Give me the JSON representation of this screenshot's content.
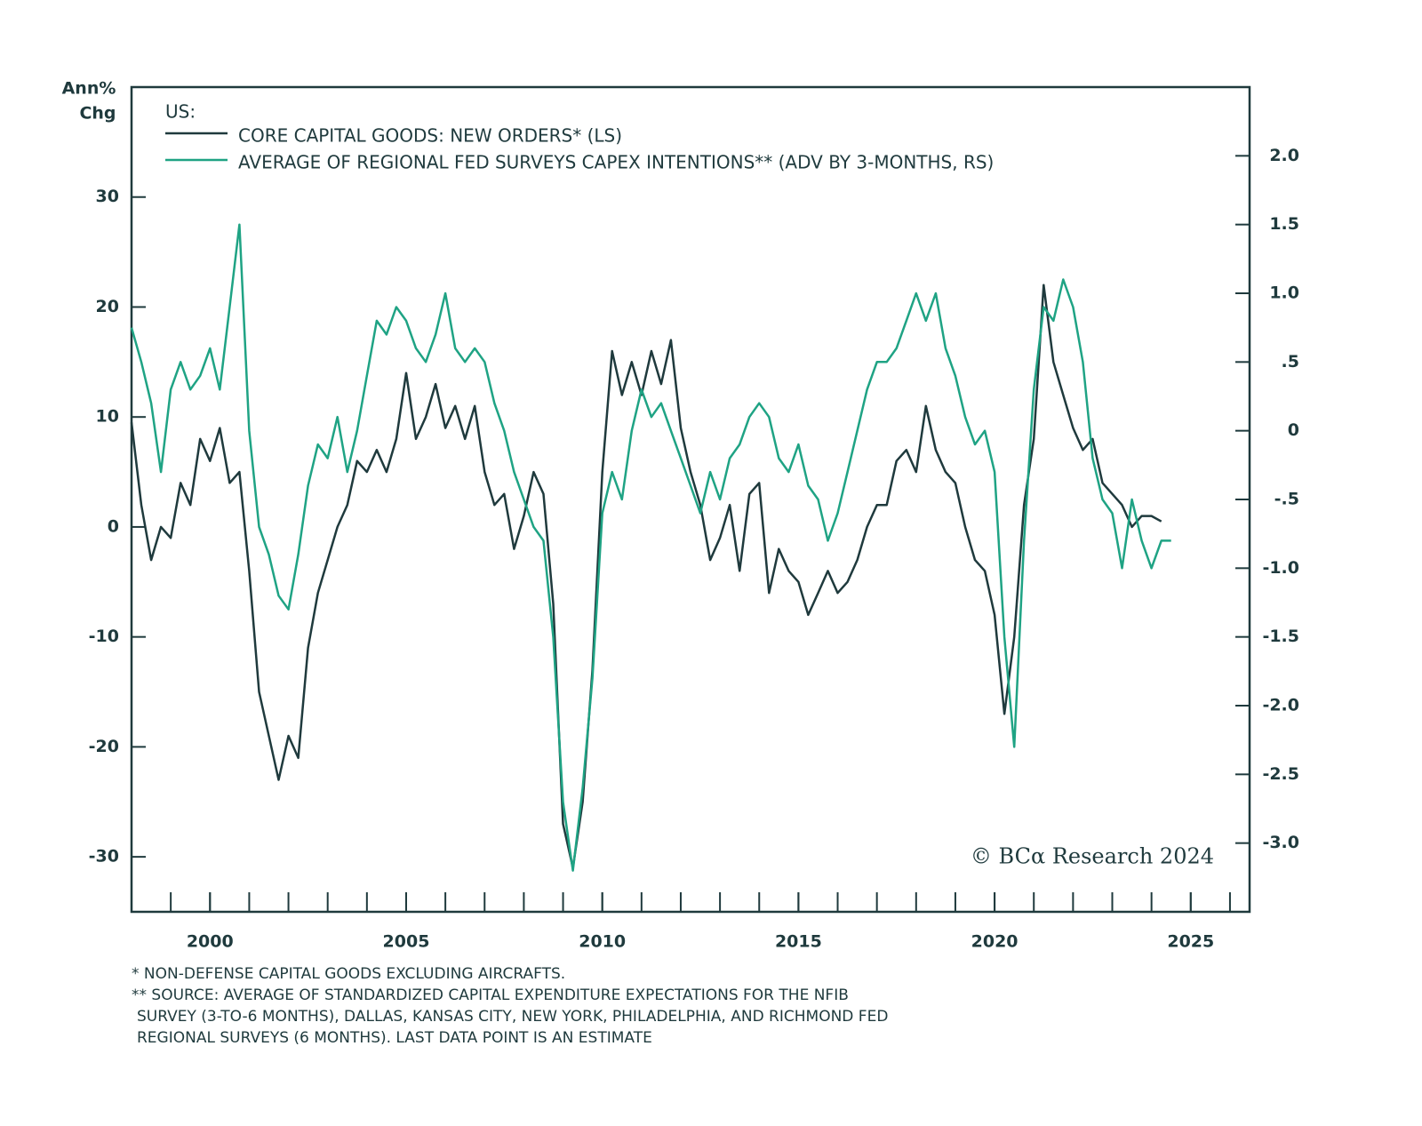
{
  "chart_data": {
    "type": "line",
    "ylabel": [
      "Ann%",
      "Chg"
    ],
    "legend_title": "US:",
    "watermark": "© BCα Research 2024",
    "footnotes": [
      "*   NON-DEFENSE CAPITAL GOODS EXCLUDING AIRCRAFTS.",
      "**  SOURCE: AVERAGE OF STANDARDIZED CAPITAL EXPENDITURE EXPECTATIONS FOR THE NFIB",
      "SURVEY (3-TO-6 MONTHS), DALLAS, KANSAS CITY, NEW YORK, PHILADELPHIA, AND RICHMOND FED",
      "REGIONAL SURVEYS (6 MONTHS). LAST DATA POINT IS AN ESTIMATE"
    ],
    "xlim": [
      1998,
      2026.5
    ],
    "xticks": [
      2000,
      2005,
      2010,
      2015,
      2020,
      2025
    ],
    "xminor_step": 1,
    "ylim": [
      -35,
      40
    ],
    "yticks": [
      -30,
      -20,
      -10,
      0,
      10,
      20,
      30
    ],
    "y2lim": [
      -3.5,
      2.5
    ],
    "y2ticks": [
      {
        "value": -3,
        "label": "-3.0"
      },
      -2.5,
      {
        "value": -2,
        "label": "-2.0"
      },
      -1.5,
      {
        "value": -1,
        "label": "-1.0"
      },
      {
        "value": -0.5,
        "label": "-.5"
      },
      0,
      {
        "value": 0.5,
        "label": ".5"
      },
      {
        "value": 1,
        "label": "1.0"
      },
      1.5,
      {
        "value": 2,
        "label": "2.0"
      }
    ],
    "series": [
      {
        "name": "CORE CAPITAL GOODS: NEW ORDERS* (LS)",
        "color": "#1f3a3d",
        "axis": "y",
        "x": [
          1998,
          1998.25,
          1998.5,
          1998.75,
          1999,
          1999.25,
          1999.5,
          1999.75,
          2000,
          2000.25,
          2000.5,
          2000.75,
          2001,
          2001.25,
          2001.5,
          2001.75,
          2002,
          2002.25,
          2002.5,
          2002.75,
          2003,
          2003.25,
          2003.5,
          2003.75,
          2004,
          2004.25,
          2004.5,
          2004.75,
          2005,
          2005.25,
          2005.5,
          2005.75,
          2006,
          2006.25,
          2006.5,
          2006.75,
          2007,
          2007.25,
          2007.5,
          2007.75,
          2008,
          2008.25,
          2008.5,
          2008.75,
          2009,
          2009.25,
          2009.5,
          2009.75,
          2010,
          2010.25,
          2010.5,
          2010.75,
          2011,
          2011.25,
          2011.5,
          2011.75,
          2012,
          2012.25,
          2012.5,
          2012.75,
          2013,
          2013.25,
          2013.5,
          2013.75,
          2014,
          2014.25,
          2014.5,
          2014.75,
          2015,
          2015.25,
          2015.5,
          2015.75,
          2016,
          2016.25,
          2016.5,
          2016.75,
          2017,
          2017.25,
          2017.5,
          2017.75,
          2018,
          2018.25,
          2018.5,
          2018.75,
          2019,
          2019.25,
          2019.5,
          2019.75,
          2020,
          2020.25,
          2020.5,
          2020.75,
          2021,
          2021.25,
          2021.5,
          2021.75,
          2022,
          2022.25,
          2022.5,
          2022.75,
          2023,
          2023.25,
          2023.5,
          2023.75,
          2024,
          2024.25
        ],
        "values": [
          9.5,
          2,
          -3,
          0,
          -1,
          4,
          2,
          8,
          6,
          9,
          4,
          5,
          -4,
          -15,
          -19,
          -23,
          -19,
          -21,
          -11,
          -6,
          -3,
          0,
          2,
          6,
          5,
          7,
          5,
          8,
          14,
          8,
          10,
          13,
          9,
          11,
          8,
          11,
          5,
          2,
          3,
          -2,
          1,
          5,
          3,
          -7,
          -27,
          -31,
          -25,
          -13,
          5,
          16,
          12,
          15,
          12,
          16,
          13,
          17,
          9,
          5,
          2,
          -3,
          -1,
          2,
          -4,
          3,
          4,
          -6,
          -2,
          -4,
          -5,
          -8,
          -6,
          -4,
          -6,
          -5,
          -3,
          0,
          2,
          2,
          6,
          7,
          5,
          11,
          7,
          5,
          4,
          0,
          -3,
          -4,
          -8,
          -17,
          -10,
          2,
          8,
          22,
          15,
          12,
          9,
          7,
          8,
          4,
          3,
          2,
          0,
          1,
          1,
          0.5
        ]
      },
      {
        "name": "AVERAGE OF REGIONAL FED SURVEYS CAPEX INTENTIONS** (ADV BY 3-MONTHS, RS)",
        "color": "#1fa384",
        "axis": "y2",
        "x": [
          1998,
          1998.25,
          1998.5,
          1998.75,
          1999,
          1999.25,
          1999.5,
          1999.75,
          2000,
          2000.25,
          2000.5,
          2000.75,
          2001,
          2001.25,
          2001.5,
          2001.75,
          2002,
          2002.25,
          2002.5,
          2002.75,
          2003,
          2003.25,
          2003.5,
          2003.75,
          2004,
          2004.25,
          2004.5,
          2004.75,
          2005,
          2005.25,
          2005.5,
          2005.75,
          2006,
          2006.25,
          2006.5,
          2006.75,
          2007,
          2007.25,
          2007.5,
          2007.75,
          2008,
          2008.25,
          2008.5,
          2008.75,
          2009,
          2009.25,
          2009.5,
          2009.75,
          2010,
          2010.25,
          2010.5,
          2010.75,
          2011,
          2011.25,
          2011.5,
          2011.75,
          2012,
          2012.25,
          2012.5,
          2012.75,
          2013,
          2013.25,
          2013.5,
          2013.75,
          2014,
          2014.25,
          2014.5,
          2014.75,
          2015,
          2015.25,
          2015.5,
          2015.75,
          2016,
          2016.25,
          2016.5,
          2016.75,
          2017,
          2017.25,
          2017.5,
          2017.75,
          2018,
          2018.25,
          2018.5,
          2018.75,
          2019,
          2019.25,
          2019.5,
          2019.75,
          2020,
          2020.25,
          2020.5,
          2020.75,
          2021,
          2021.25,
          2021.5,
          2021.75,
          2022,
          2022.25,
          2022.5,
          2022.75,
          2023,
          2023.25,
          2023.5,
          2023.75,
          2024,
          2024.25,
          2024.5
        ],
        "values": [
          0.75,
          0.5,
          0.2,
          -0.3,
          0.3,
          0.5,
          0.3,
          0.4,
          0.6,
          0.3,
          0.9,
          1.5,
          0,
          -0.7,
          -0.9,
          -1.2,
          -1.3,
          -0.9,
          -0.4,
          -0.1,
          -0.2,
          0.1,
          -0.3,
          0,
          0.4,
          0.8,
          0.7,
          0.9,
          0.8,
          0.6,
          0.5,
          0.7,
          1.0,
          0.6,
          0.5,
          0.6,
          0.5,
          0.2,
          0,
          -0.3,
          -0.5,
          -0.7,
          -0.8,
          -1.5,
          -2.7,
          -3.2,
          -2.6,
          -1.8,
          -0.6,
          -0.3,
          -0.5,
          0,
          0.3,
          0.1,
          0.2,
          0,
          -0.2,
          -0.4,
          -0.6,
          -0.3,
          -0.5,
          -0.2,
          -0.1,
          0.1,
          0.2,
          0.1,
          -0.2,
          -0.3,
          -0.1,
          -0.4,
          -0.5,
          -0.8,
          -0.6,
          -0.3,
          0,
          0.3,
          0.5,
          0.5,
          0.6,
          0.8,
          1.0,
          0.8,
          1.0,
          0.6,
          0.4,
          0.1,
          -0.1,
          0,
          -0.3,
          -1.5,
          -2.3,
          -0.8,
          0.3,
          0.9,
          0.8,
          1.1,
          0.9,
          0.5,
          -0.2,
          -0.5,
          -0.6,
          -1.0,
          -0.5,
          -0.8,
          -1.0,
          -0.8,
          -0.8
        ]
      }
    ]
  }
}
